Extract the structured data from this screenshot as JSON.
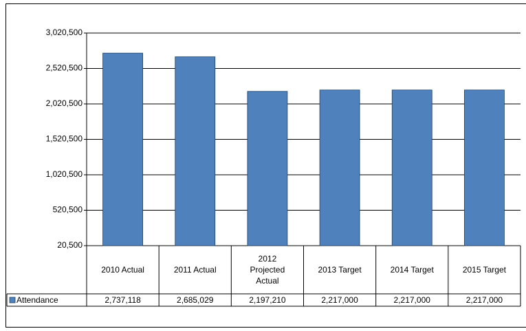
{
  "chart_data": {
    "type": "bar",
    "categories": [
      "2010 Actual",
      "2011 Actual",
      "2012 Projected Actual",
      "2013 Target",
      "2014 Target",
      "2015 Target"
    ],
    "series": [
      {
        "name": "Attendance",
        "color": "#4f81bd",
        "values": [
          2737118,
          2685029,
          2197210,
          2217000,
          2217000,
          2217000
        ],
        "value_labels": [
          "2,737,118",
          "2,685,029",
          "2,197,210",
          "2,217,000",
          "2,217,000",
          "2,217,000"
        ]
      }
    ],
    "ylim": [
      20500,
      3020500
    ],
    "yticks": [
      {
        "value": 20500,
        "label": "20,500"
      },
      {
        "value": 520500,
        "label": "520,500"
      },
      {
        "value": 1020500,
        "label": "1,020,500"
      },
      {
        "value": 1520500,
        "label": "1,520,500"
      },
      {
        "value": 2020500,
        "label": "2,020,500"
      },
      {
        "value": 2520500,
        "label": "2,520,500"
      },
      {
        "value": 3020500,
        "label": "3,020,500"
      }
    ],
    "grid": true
  }
}
